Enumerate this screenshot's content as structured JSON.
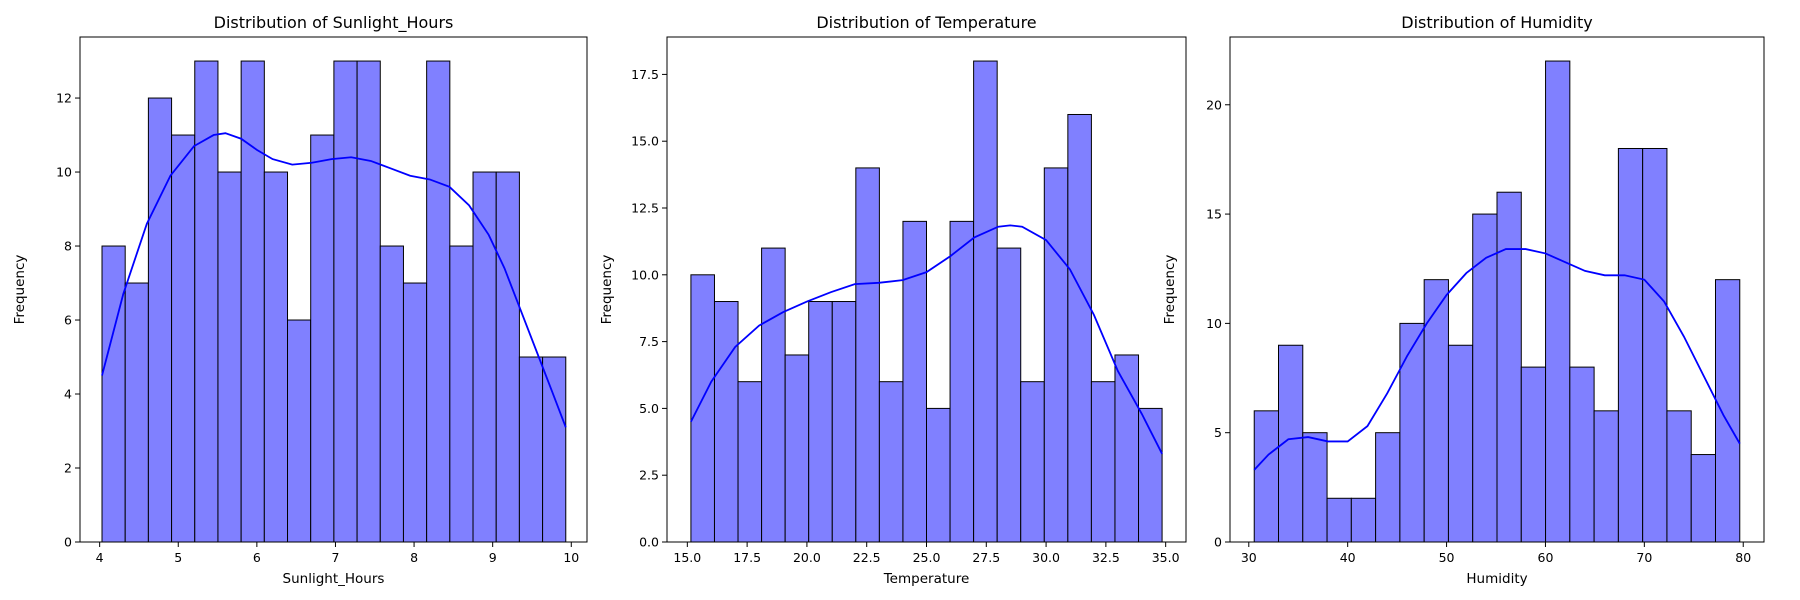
{
  "chart_data": [
    {
      "type": "bar",
      "title": "Distribution of Sunlight_Hours",
      "xlabel": "Sunlight_Hours",
      "ylabel": "Frequency",
      "xlim": [
        3.75,
        10.2
      ],
      "ylim": [
        0,
        13.65
      ],
      "xticks": [
        4,
        5,
        6,
        7,
        8,
        9,
        10
      ],
      "xtick_labels": [
        "4",
        "5",
        "6",
        "7",
        "8",
        "9",
        "10"
      ],
      "yticks": [
        0,
        2,
        4,
        6,
        8,
        10,
        12
      ],
      "ytick_labels": [
        "0",
        "2",
        "4",
        "6",
        "8",
        "10",
        "12"
      ],
      "bin_start": 4.03,
      "bin_width": 0.295,
      "values": [
        8,
        7,
        12,
        11,
        13,
        10,
        13,
        10,
        6,
        11,
        13,
        13,
        8,
        7,
        13,
        8,
        10,
        10,
        5,
        5
      ],
      "kde": {
        "color": "#0000ff",
        "x": [
          4.03,
          4.3,
          4.6,
          4.9,
          5.2,
          5.45,
          5.6,
          5.8,
          6.0,
          6.2,
          6.45,
          6.7,
          6.95,
          7.2,
          7.45,
          7.7,
          7.95,
          8.2,
          8.45,
          8.7,
          8.95,
          9.15,
          9.35,
          9.55,
          9.75,
          9.93
        ],
        "y": [
          4.5,
          6.7,
          8.6,
          9.9,
          10.7,
          11.0,
          11.05,
          10.9,
          10.6,
          10.35,
          10.2,
          10.25,
          10.35,
          10.4,
          10.3,
          10.1,
          9.9,
          9.8,
          9.6,
          9.1,
          8.3,
          7.4,
          6.3,
          5.2,
          4.1,
          3.1
        ]
      },
      "bar_color": "#8080ff"
    },
    {
      "type": "bar",
      "title": "Distribution of Temperature",
      "xlabel": "Temperature",
      "ylabel": "Frequency",
      "xlim": [
        14.15,
        35.85
      ],
      "ylim": [
        0,
        18.9
      ],
      "xticks": [
        15.0,
        17.5,
        20.0,
        22.5,
        25.0,
        27.5,
        30.0,
        32.5,
        35.0
      ],
      "xtick_labels": [
        "15.0",
        "17.5",
        "20.0",
        "22.5",
        "25.0",
        "27.5",
        "30.0",
        "32.5",
        "35.0"
      ],
      "yticks": [
        0.0,
        2.5,
        5.0,
        7.5,
        10.0,
        12.5,
        15.0,
        17.5
      ],
      "ytick_labels": [
        "0.0",
        "2.5",
        "5.0",
        "7.5",
        "10.0",
        "12.5",
        "15.0",
        "17.5"
      ],
      "bin_start": 15.15,
      "bin_width": 0.985,
      "values": [
        10,
        9,
        6,
        11,
        7,
        9,
        9,
        14,
        6,
        12,
        5,
        12,
        18,
        11,
        6,
        14,
        16,
        6,
        7,
        5
      ],
      "kde": {
        "color": "#0000ff",
        "x": [
          15.15,
          16.0,
          17.0,
          18.0,
          19.0,
          20.0,
          21.0,
          22.0,
          23.0,
          24.0,
          25.0,
          26.0,
          27.0,
          28.0,
          28.5,
          29.0,
          30.0,
          31.0,
          32.0,
          33.0,
          34.0,
          34.85
        ],
        "y": [
          4.5,
          6.0,
          7.3,
          8.1,
          8.6,
          9.0,
          9.35,
          9.65,
          9.7,
          9.8,
          10.1,
          10.7,
          11.4,
          11.8,
          11.85,
          11.8,
          11.3,
          10.2,
          8.5,
          6.4,
          4.8,
          3.3
        ]
      },
      "bar_color": "#8080ff"
    },
    {
      "type": "bar",
      "title": "Distribution of Humidity",
      "xlabel": "Humidity",
      "ylabel": "Frequency",
      "xlim": [
        28.1,
        82.1
      ],
      "ylim": [
        0,
        23.1
      ],
      "xticks": [
        30,
        40,
        50,
        60,
        70,
        80
      ],
      "xtick_labels": [
        "30",
        "40",
        "50",
        "60",
        "70",
        "80"
      ],
      "yticks": [
        0,
        5,
        10,
        15,
        20
      ],
      "ytick_labels": [
        "0",
        "5",
        "10",
        "15",
        "20"
      ],
      "bin_start": 30.55,
      "bin_width": 2.455,
      "values": [
        6,
        9,
        5,
        2,
        2,
        5,
        10,
        12,
        9,
        15,
        16,
        8,
        22,
        8,
        6,
        18,
        18,
        6,
        4,
        12
      ],
      "kde": {
        "color": "#0000ff",
        "x": [
          30.55,
          32.0,
          34.0,
          36.0,
          38.0,
          40.0,
          42.0,
          44.0,
          46.0,
          48.0,
          50.0,
          52.0,
          54.0,
          56.0,
          58.0,
          60.0,
          62.0,
          64.0,
          66.0,
          68.0,
          70.0,
          72.0,
          74.0,
          76.0,
          78.0,
          79.65
        ],
        "y": [
          3.3,
          4.0,
          4.7,
          4.8,
          4.6,
          4.6,
          5.3,
          6.8,
          8.5,
          10.0,
          11.3,
          12.3,
          13.0,
          13.4,
          13.4,
          13.2,
          12.8,
          12.4,
          12.2,
          12.2,
          12.0,
          11.0,
          9.4,
          7.6,
          5.8,
          4.5
        ]
      },
      "bar_color": "#8080ff"
    }
  ]
}
